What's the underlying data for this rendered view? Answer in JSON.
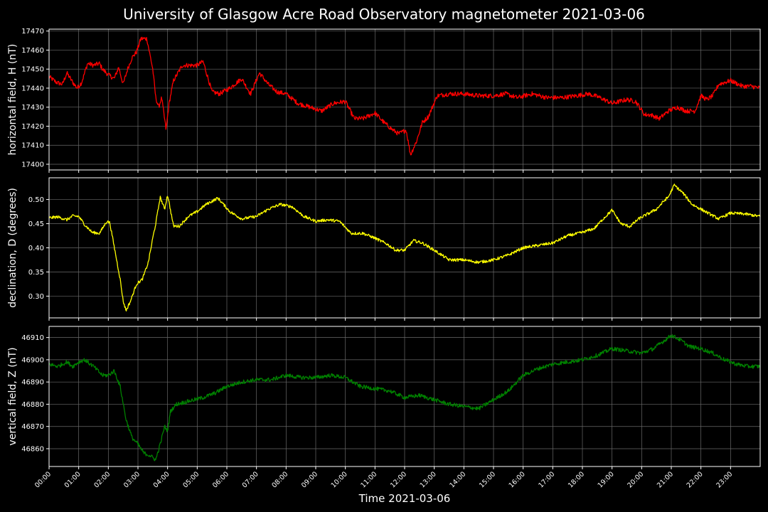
{
  "chart_data": {
    "type": "line",
    "title": "University of Glasgow Acre Road Observatory magnetometer 2021-03-06",
    "xlabel": "Time 2021-03-06",
    "x_tick_labels": [
      "00:00",
      "01:00",
      "02:00",
      "03:00",
      "04:00",
      "05:00",
      "06:00",
      "07:00",
      "08:00",
      "09:00",
      "10:00",
      "11:00",
      "12:00",
      "13:00",
      "14:00",
      "15:00",
      "16:00",
      "17:00",
      "18:00",
      "19:00",
      "20:00",
      "21:00",
      "22:00",
      "23:00"
    ],
    "xlim": [
      0,
      24
    ],
    "grid": true,
    "background": "#000000",
    "panels": [
      {
        "ylabel": "horizontal field, H (nT)",
        "color": "#ff0000",
        "ylim": [
          17397,
          17471
        ],
        "yticks": [
          17400,
          17410,
          17420,
          17430,
          17440,
          17450,
          17460,
          17470
        ],
        "ytick_labels": [
          "17400",
          "17410",
          "17420",
          "17430",
          "17440",
          "17450",
          "17460",
          "17470"
        ],
        "noise": 1.2,
        "x": [
          0,
          0.25,
          0.45,
          0.6,
          0.8,
          0.95,
          1.1,
          1.3,
          1.5,
          1.7,
          1.8,
          2.0,
          2.2,
          2.35,
          2.5,
          2.65,
          2.8,
          2.95,
          3.1,
          3.3,
          3.5,
          3.6,
          3.7,
          3.8,
          3.95,
          4.05,
          4.2,
          4.5,
          4.8,
          5.0,
          5.2,
          5.5,
          5.75,
          6.1,
          6.5,
          6.8,
          7.1,
          7.4,
          7.7,
          8.0,
          8.4,
          8.8,
          9.2,
          9.6,
          10.0,
          10.3,
          10.6,
          11.0,
          11.3,
          11.6,
          11.8,
          12.05,
          12.2,
          12.4,
          12.6,
          12.8,
          13.1,
          13.5,
          14.0,
          14.5,
          15.0,
          15.4,
          15.8,
          16.3,
          16.8,
          17.3,
          17.8,
          18.2,
          18.6,
          19.0,
          19.5,
          19.8,
          20.1,
          20.3,
          20.6,
          20.9,
          21.2,
          21.5,
          21.8,
          22.0,
          22.2,
          22.4,
          22.6,
          23.0,
          23.4,
          23.7,
          24.0
        ],
        "values": [
          17446,
          17443,
          17442,
          17448,
          17443,
          17440,
          17443,
          17453,
          17452,
          17453,
          17450,
          17447,
          17445,
          17451,
          17442,
          17450,
          17456,
          17459,
          17466,
          17466,
          17450,
          17435,
          17430,
          17435,
          17418,
          17432,
          17444,
          17452,
          17452,
          17452,
          17454,
          17438,
          17437,
          17440,
          17445,
          17437,
          17448,
          17442,
          17438,
          17437,
          17432,
          17430,
          17428,
          17432,
          17433,
          17424,
          17424,
          17427,
          17422,
          17418,
          17416,
          17418,
          17405,
          17412,
          17422,
          17425,
          17436,
          17437,
          17437,
          17436,
          17436,
          17437,
          17435,
          17437,
          17435,
          17435,
          17436,
          17437,
          17435,
          17432,
          17434,
          17433,
          17426,
          17426,
          17424,
          17428,
          17430,
          17428,
          17428,
          17436,
          17434,
          17436,
          17442,
          17444,
          17441,
          17441,
          17440
        ]
      },
      {
        "ylabel": "declination, D (degrees)",
        "color": "#ffff00",
        "ylim": [
          0.255,
          0.545
        ],
        "yticks": [
          0.3,
          0.35,
          0.4,
          0.45,
          0.5
        ],
        "ytick_labels": [
          "0.30",
          "0.35",
          "0.40",
          "0.45",
          "0.50"
        ],
        "noise": 0.003,
        "x": [
          0,
          0.3,
          0.6,
          0.8,
          1.0,
          1.2,
          1.45,
          1.7,
          1.95,
          2.05,
          2.25,
          2.4,
          2.5,
          2.6,
          2.75,
          2.95,
          3.15,
          3.35,
          3.5,
          3.6,
          3.75,
          3.9,
          4.0,
          4.2,
          4.4,
          4.7,
          5.0,
          5.3,
          5.7,
          6.1,
          6.5,
          7.0,
          7.4,
          7.8,
          8.2,
          8.6,
          9.0,
          9.4,
          9.8,
          10.2,
          10.6,
          11.0,
          11.4,
          11.7,
          12.0,
          12.3,
          12.6,
          13.0,
          13.5,
          14.0,
          14.5,
          15.0,
          15.5,
          16.0,
          16.5,
          17.0,
          17.5,
          18.0,
          18.4,
          18.7,
          19.0,
          19.3,
          19.6,
          19.9,
          20.2,
          20.5,
          20.8,
          20.9,
          21.1,
          21.4,
          21.7,
          22.0,
          22.3,
          22.6,
          23.0,
          23.5,
          24.0
        ],
        "values": [
          0.462,
          0.464,
          0.458,
          0.466,
          0.465,
          0.448,
          0.432,
          0.43,
          0.455,
          0.452,
          0.385,
          0.335,
          0.29,
          0.27,
          0.29,
          0.325,
          0.335,
          0.37,
          0.42,
          0.45,
          0.505,
          0.48,
          0.51,
          0.445,
          0.445,
          0.465,
          0.475,
          0.49,
          0.503,
          0.475,
          0.46,
          0.465,
          0.48,
          0.49,
          0.485,
          0.465,
          0.455,
          0.458,
          0.455,
          0.43,
          0.43,
          0.42,
          0.408,
          0.395,
          0.395,
          0.415,
          0.41,
          0.395,
          0.375,
          0.375,
          0.37,
          0.375,
          0.385,
          0.4,
          0.405,
          0.41,
          0.425,
          0.432,
          0.44,
          0.46,
          0.478,
          0.45,
          0.444,
          0.46,
          0.47,
          0.48,
          0.5,
          0.505,
          0.53,
          0.513,
          0.49,
          0.48,
          0.47,
          0.46,
          0.472,
          0.47,
          0.465
        ]
      },
      {
        "ylabel": "vertical field, Z (nT)",
        "color": "#008000",
        "ylim": [
          46852,
          46915
        ],
        "yticks": [
          46860,
          46870,
          46880,
          46890,
          46900,
          46910
        ],
        "ytick_labels": [
          "46860",
          "46870",
          "46880",
          "46890",
          "46900",
          "46910"
        ],
        "noise": 0.9,
        "x": [
          0,
          0.3,
          0.6,
          0.8,
          1.0,
          1.2,
          1.5,
          1.8,
          2.0,
          2.2,
          2.4,
          2.6,
          2.8,
          3.0,
          3.2,
          3.4,
          3.6,
          3.75,
          3.9,
          4.0,
          4.1,
          4.3,
          4.6,
          4.9,
          5.2,
          5.6,
          6.0,
          6.5,
          7.0,
          7.5,
          8.0,
          8.5,
          9.0,
          9.5,
          10.0,
          10.5,
          11.0,
          11.5,
          12.0,
          12.5,
          13.0,
          13.5,
          14.0,
          14.5,
          15.0,
          15.5,
          16.0,
          16.5,
          17.0,
          17.5,
          18.0,
          18.5,
          19.0,
          19.5,
          20.0,
          20.4,
          20.8,
          21.0,
          21.3,
          21.6,
          22.0,
          22.4,
          22.8,
          23.2,
          23.6,
          24.0
        ],
        "values": [
          46898,
          46897,
          46899,
          46897,
          46899,
          46900,
          46897,
          46893,
          46893,
          46895,
          46888,
          46873,
          46865,
          46862,
          46858,
          46857,
          46855,
          46862,
          46870,
          46868,
          46877,
          46880,
          46881,
          46882,
          46883,
          46885,
          46888,
          46890,
          46891,
          46891,
          46893,
          46892,
          46892,
          46893,
          46892,
          46888,
          46887,
          46886,
          46883,
          46884,
          46882,
          46880,
          46879,
          46878,
          46882,
          46886,
          46893,
          46896,
          46898,
          46899,
          46900,
          46902,
          46905,
          46904,
          46903,
          46905,
          46909,
          46911,
          46909,
          46906,
          46905,
          46903,
          46900,
          46898,
          46897,
          46897
        ]
      }
    ]
  }
}
